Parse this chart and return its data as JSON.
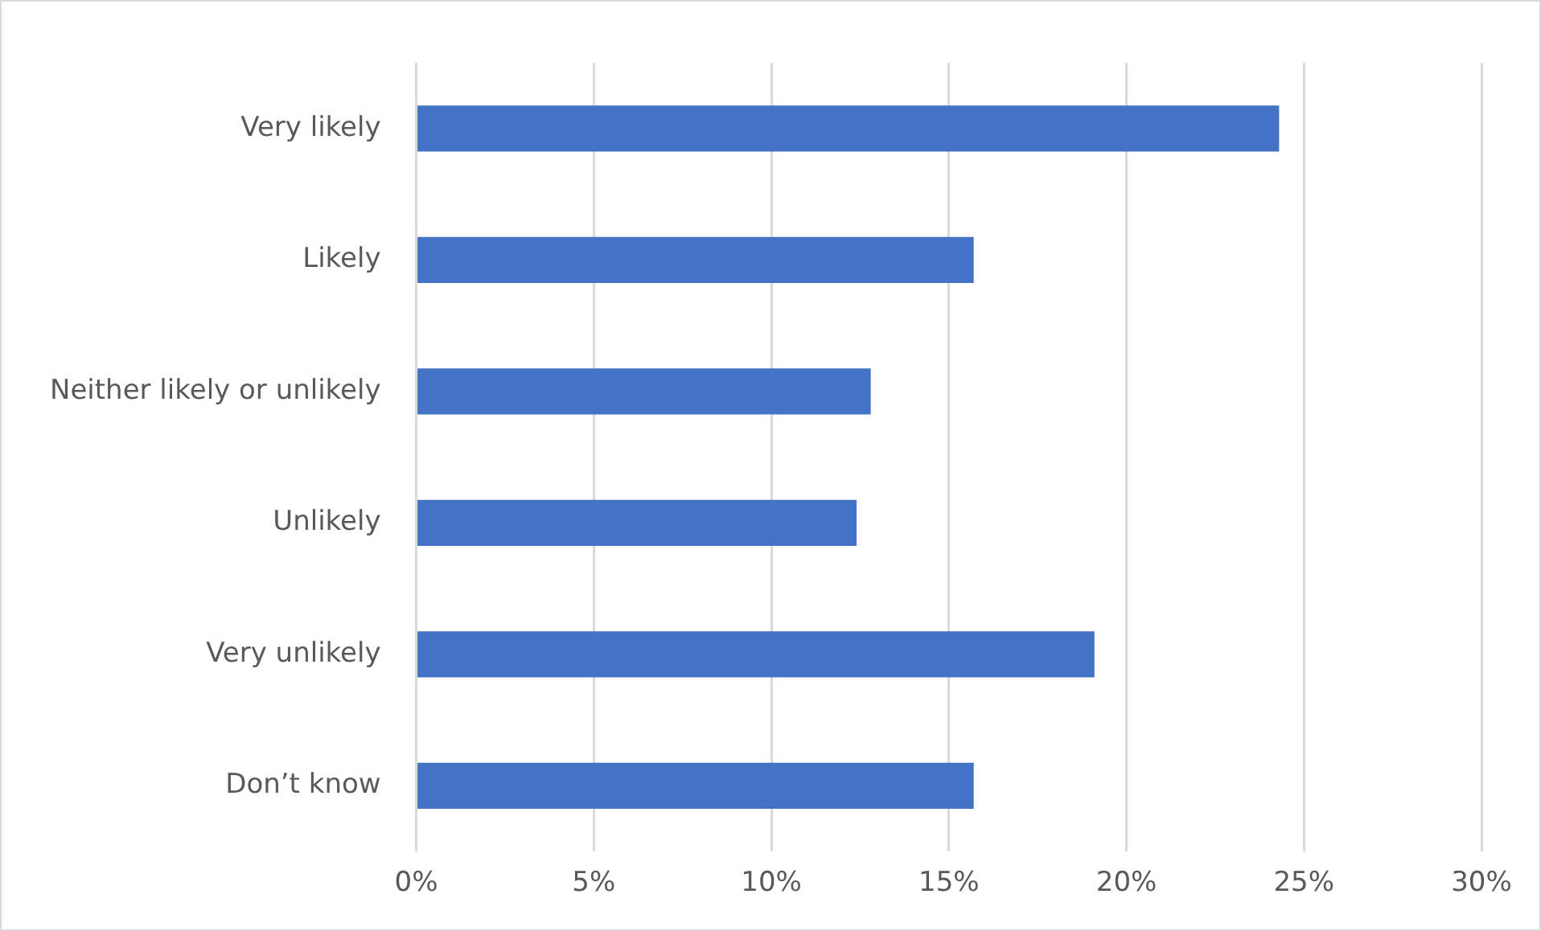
{
  "chart_data": {
    "type": "bar",
    "orientation": "horizontal",
    "categories": [
      "Very likely",
      "Likely",
      "Neither likely or unlikely",
      "Unlikely",
      "Very unlikely",
      "Don’t know"
    ],
    "values": [
      24.3,
      15.7,
      12.8,
      12.4,
      19.1,
      15.7
    ],
    "color": "#4472c4",
    "xlim": [
      0,
      30
    ],
    "xticks": [
      {
        "value": 0,
        "label": "0%"
      },
      {
        "value": 5,
        "label": "5%"
      },
      {
        "value": 10,
        "label": "10%"
      },
      {
        "value": 15,
        "label": "15%"
      },
      {
        "value": 20,
        "label": "20%"
      },
      {
        "value": 25,
        "label": "25%"
      },
      {
        "value": 30,
        "label": "30%"
      }
    ],
    "grid": "x",
    "legend": false
  }
}
